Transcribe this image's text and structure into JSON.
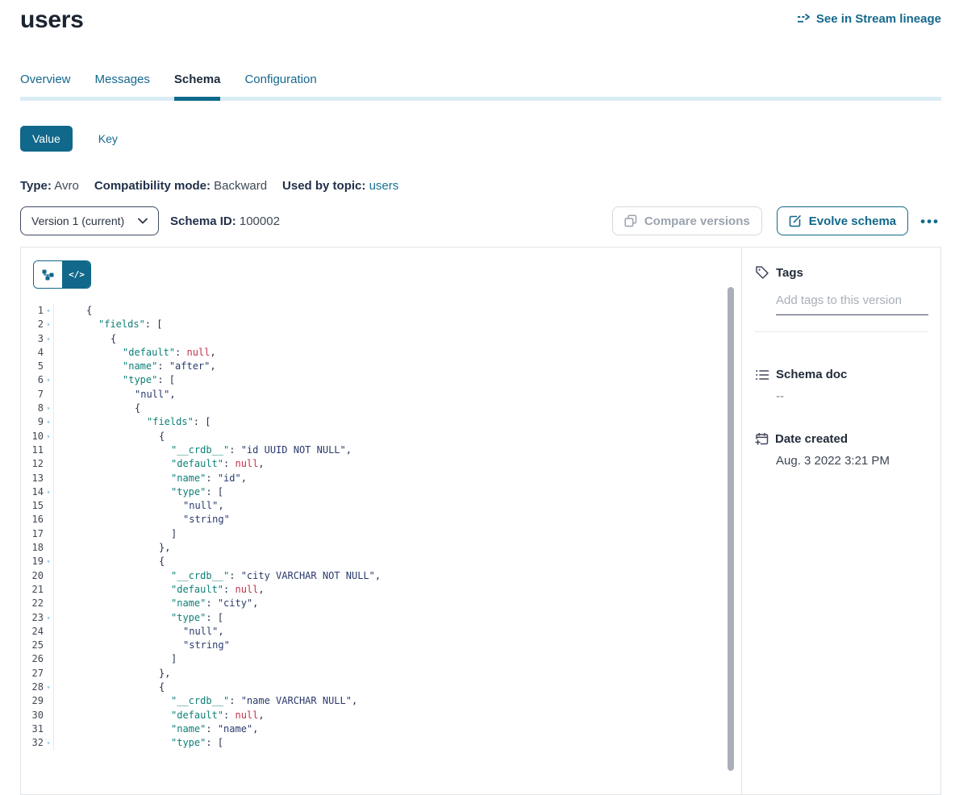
{
  "page": {
    "title": "users"
  },
  "header": {
    "lineage_link": "See in Stream lineage"
  },
  "tabs": [
    {
      "label": "Overview",
      "active": false
    },
    {
      "label": "Messages",
      "active": false
    },
    {
      "label": "Schema",
      "active": true
    },
    {
      "label": "Configuration",
      "active": false
    }
  ],
  "schema_toggle": {
    "value_label": "Value",
    "key_label": "Key"
  },
  "meta": {
    "type_label": "Type:",
    "type_value": "Avro",
    "compat_label": "Compatibility mode:",
    "compat_value": "Backward",
    "topic_label": "Used by topic:",
    "topic_value": "users"
  },
  "controls": {
    "version_selected": "Version 1 (current)",
    "schema_id_label": "Schema ID:",
    "schema_id_value": "100002",
    "compare_label": "Compare versions",
    "evolve_label": "Evolve schema",
    "more_label": "•••"
  },
  "colors": {
    "accent_teal": "#11688a",
    "tab_track": "#d9ecf4",
    "syntax_key": "#0d8077",
    "syntax_string": "#2a3a6d",
    "syntax_null": "#c2334d",
    "syntax_punct": "#223050"
  },
  "code": {
    "lines": [
      {
        "n": 1,
        "fold": true,
        "ind": 0,
        "toks": [
          [
            "p",
            "{"
          ]
        ]
      },
      {
        "n": 2,
        "fold": true,
        "ind": 1,
        "toks": [
          [
            "k",
            "\"fields\""
          ],
          [
            "p",
            ": ["
          ]
        ]
      },
      {
        "n": 3,
        "fold": true,
        "ind": 2,
        "toks": [
          [
            "p",
            "{"
          ]
        ]
      },
      {
        "n": 4,
        "fold": false,
        "ind": 3,
        "toks": [
          [
            "k",
            "\"default\""
          ],
          [
            "p",
            ": "
          ],
          [
            "n",
            "null"
          ],
          [
            "p",
            ","
          ]
        ]
      },
      {
        "n": 5,
        "fold": false,
        "ind": 3,
        "toks": [
          [
            "k",
            "\"name\""
          ],
          [
            "p",
            ": "
          ],
          [
            "s",
            "\"after\""
          ],
          [
            "p",
            ","
          ]
        ]
      },
      {
        "n": 6,
        "fold": true,
        "ind": 3,
        "toks": [
          [
            "k",
            "\"type\""
          ],
          [
            "p",
            ": ["
          ]
        ]
      },
      {
        "n": 7,
        "fold": false,
        "ind": 4,
        "toks": [
          [
            "s",
            "\"null\""
          ],
          [
            "p",
            ","
          ]
        ]
      },
      {
        "n": 8,
        "fold": true,
        "ind": 4,
        "toks": [
          [
            "p",
            "{"
          ]
        ]
      },
      {
        "n": 9,
        "fold": true,
        "ind": 5,
        "toks": [
          [
            "k",
            "\"fields\""
          ],
          [
            "p",
            ": ["
          ]
        ]
      },
      {
        "n": 10,
        "fold": true,
        "ind": 6,
        "toks": [
          [
            "p",
            "{"
          ]
        ]
      },
      {
        "n": 11,
        "fold": false,
        "ind": 7,
        "toks": [
          [
            "k",
            "\"__crdb__\""
          ],
          [
            "p",
            ": "
          ],
          [
            "s",
            "\"id UUID NOT NULL\""
          ],
          [
            "p",
            ","
          ]
        ]
      },
      {
        "n": 12,
        "fold": false,
        "ind": 7,
        "toks": [
          [
            "k",
            "\"default\""
          ],
          [
            "p",
            ": "
          ],
          [
            "n",
            "null"
          ],
          [
            "p",
            ","
          ]
        ]
      },
      {
        "n": 13,
        "fold": false,
        "ind": 7,
        "toks": [
          [
            "k",
            "\"name\""
          ],
          [
            "p",
            ": "
          ],
          [
            "s",
            "\"id\""
          ],
          [
            "p",
            ","
          ]
        ]
      },
      {
        "n": 14,
        "fold": true,
        "ind": 7,
        "toks": [
          [
            "k",
            "\"type\""
          ],
          [
            "p",
            ": ["
          ]
        ]
      },
      {
        "n": 15,
        "fold": false,
        "ind": 8,
        "toks": [
          [
            "s",
            "\"null\""
          ],
          [
            "p",
            ","
          ]
        ]
      },
      {
        "n": 16,
        "fold": false,
        "ind": 8,
        "toks": [
          [
            "s",
            "\"string\""
          ]
        ]
      },
      {
        "n": 17,
        "fold": false,
        "ind": 7,
        "toks": [
          [
            "p",
            "]"
          ]
        ]
      },
      {
        "n": 18,
        "fold": false,
        "ind": 6,
        "toks": [
          [
            "p",
            "},"
          ]
        ]
      },
      {
        "n": 19,
        "fold": true,
        "ind": 6,
        "toks": [
          [
            "p",
            "{"
          ]
        ]
      },
      {
        "n": 20,
        "fold": false,
        "ind": 7,
        "toks": [
          [
            "k",
            "\"__crdb__\""
          ],
          [
            "p",
            ": "
          ],
          [
            "s",
            "\"city VARCHAR NOT NULL\""
          ],
          [
            "p",
            ","
          ]
        ]
      },
      {
        "n": 21,
        "fold": false,
        "ind": 7,
        "toks": [
          [
            "k",
            "\"default\""
          ],
          [
            "p",
            ": "
          ],
          [
            "n",
            "null"
          ],
          [
            "p",
            ","
          ]
        ]
      },
      {
        "n": 22,
        "fold": false,
        "ind": 7,
        "toks": [
          [
            "k",
            "\"name\""
          ],
          [
            "p",
            ": "
          ],
          [
            "s",
            "\"city\""
          ],
          [
            "p",
            ","
          ]
        ]
      },
      {
        "n": 23,
        "fold": true,
        "ind": 7,
        "toks": [
          [
            "k",
            "\"type\""
          ],
          [
            "p",
            ": ["
          ]
        ]
      },
      {
        "n": 24,
        "fold": false,
        "ind": 8,
        "toks": [
          [
            "s",
            "\"null\""
          ],
          [
            "p",
            ","
          ]
        ]
      },
      {
        "n": 25,
        "fold": false,
        "ind": 8,
        "toks": [
          [
            "s",
            "\"string\""
          ]
        ]
      },
      {
        "n": 26,
        "fold": false,
        "ind": 7,
        "toks": [
          [
            "p",
            "]"
          ]
        ]
      },
      {
        "n": 27,
        "fold": false,
        "ind": 6,
        "toks": [
          [
            "p",
            "},"
          ]
        ]
      },
      {
        "n": 28,
        "fold": true,
        "ind": 6,
        "toks": [
          [
            "p",
            "{"
          ]
        ]
      },
      {
        "n": 29,
        "fold": false,
        "ind": 7,
        "toks": [
          [
            "k",
            "\"__crdb__\""
          ],
          [
            "p",
            ": "
          ],
          [
            "s",
            "\"name VARCHAR NULL\""
          ],
          [
            "p",
            ","
          ]
        ]
      },
      {
        "n": 30,
        "fold": false,
        "ind": 7,
        "toks": [
          [
            "k",
            "\"default\""
          ],
          [
            "p",
            ": "
          ],
          [
            "n",
            "null"
          ],
          [
            "p",
            ","
          ]
        ]
      },
      {
        "n": 31,
        "fold": false,
        "ind": 7,
        "toks": [
          [
            "k",
            "\"name\""
          ],
          [
            "p",
            ": "
          ],
          [
            "s",
            "\"name\""
          ],
          [
            "p",
            ","
          ]
        ]
      },
      {
        "n": 32,
        "fold": true,
        "ind": 7,
        "toks": [
          [
            "k",
            "\"type\""
          ],
          [
            "p",
            ": ["
          ]
        ]
      }
    ]
  },
  "sidebar": {
    "tags": {
      "title": "Tags",
      "placeholder": "Add tags to this version"
    },
    "schema_doc": {
      "title": "Schema doc",
      "value": "--"
    },
    "date_created": {
      "title": "Date created",
      "value": "Aug. 3 2022 3:21 PM"
    }
  }
}
